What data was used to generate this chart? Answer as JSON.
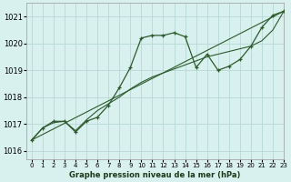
{
  "title": "Graphe pression niveau de la mer (hPa)",
  "background_color": "#d8f0ee",
  "grid_color": "#b8d8d4",
  "line_color": "#2d5a2d",
  "xlim": [
    -0.5,
    23
  ],
  "ylim": [
    1015.7,
    1021.5
  ],
  "yticks": [
    1016,
    1017,
    1018,
    1019,
    1020,
    1021
  ],
  "xticks": [
    0,
    1,
    2,
    3,
    4,
    5,
    6,
    7,
    8,
    9,
    10,
    11,
    12,
    13,
    14,
    15,
    16,
    17,
    18,
    19,
    20,
    21,
    22,
    23
  ],
  "series1_x": [
    0,
    1,
    2,
    3,
    4,
    5,
    6,
    7,
    8,
    9,
    10,
    11,
    12,
    13,
    14,
    15,
    16,
    17,
    18,
    19,
    20,
    21,
    22,
    23
  ],
  "series1_y": [
    1016.4,
    1016.85,
    1017.1,
    1017.1,
    1016.7,
    1017.1,
    1017.25,
    1017.7,
    1018.35,
    1019.1,
    1020.2,
    1020.3,
    1020.3,
    1020.4,
    1020.25,
    1019.1,
    1019.6,
    1019.0,
    1019.15,
    1019.4,
    1019.9,
    1020.6,
    1021.05,
    1021.2
  ],
  "series2_x": [
    0,
    23
  ],
  "series2_y": [
    1016.4,
    1021.2
  ],
  "series3_x": [
    0,
    1,
    2,
    3,
    4,
    5,
    6,
    7,
    8,
    9,
    10,
    11,
    12,
    13,
    14,
    15,
    16,
    17,
    18,
    19,
    20,
    21,
    22,
    23
  ],
  "series3_y": [
    1016.4,
    1016.85,
    1017.05,
    1017.1,
    1016.75,
    1017.15,
    1017.5,
    1017.75,
    1018.0,
    1018.3,
    1018.55,
    1018.75,
    1018.9,
    1019.05,
    1019.2,
    1019.35,
    1019.5,
    1019.6,
    1019.7,
    1019.8,
    1019.9,
    1020.1,
    1020.5,
    1021.2
  ]
}
